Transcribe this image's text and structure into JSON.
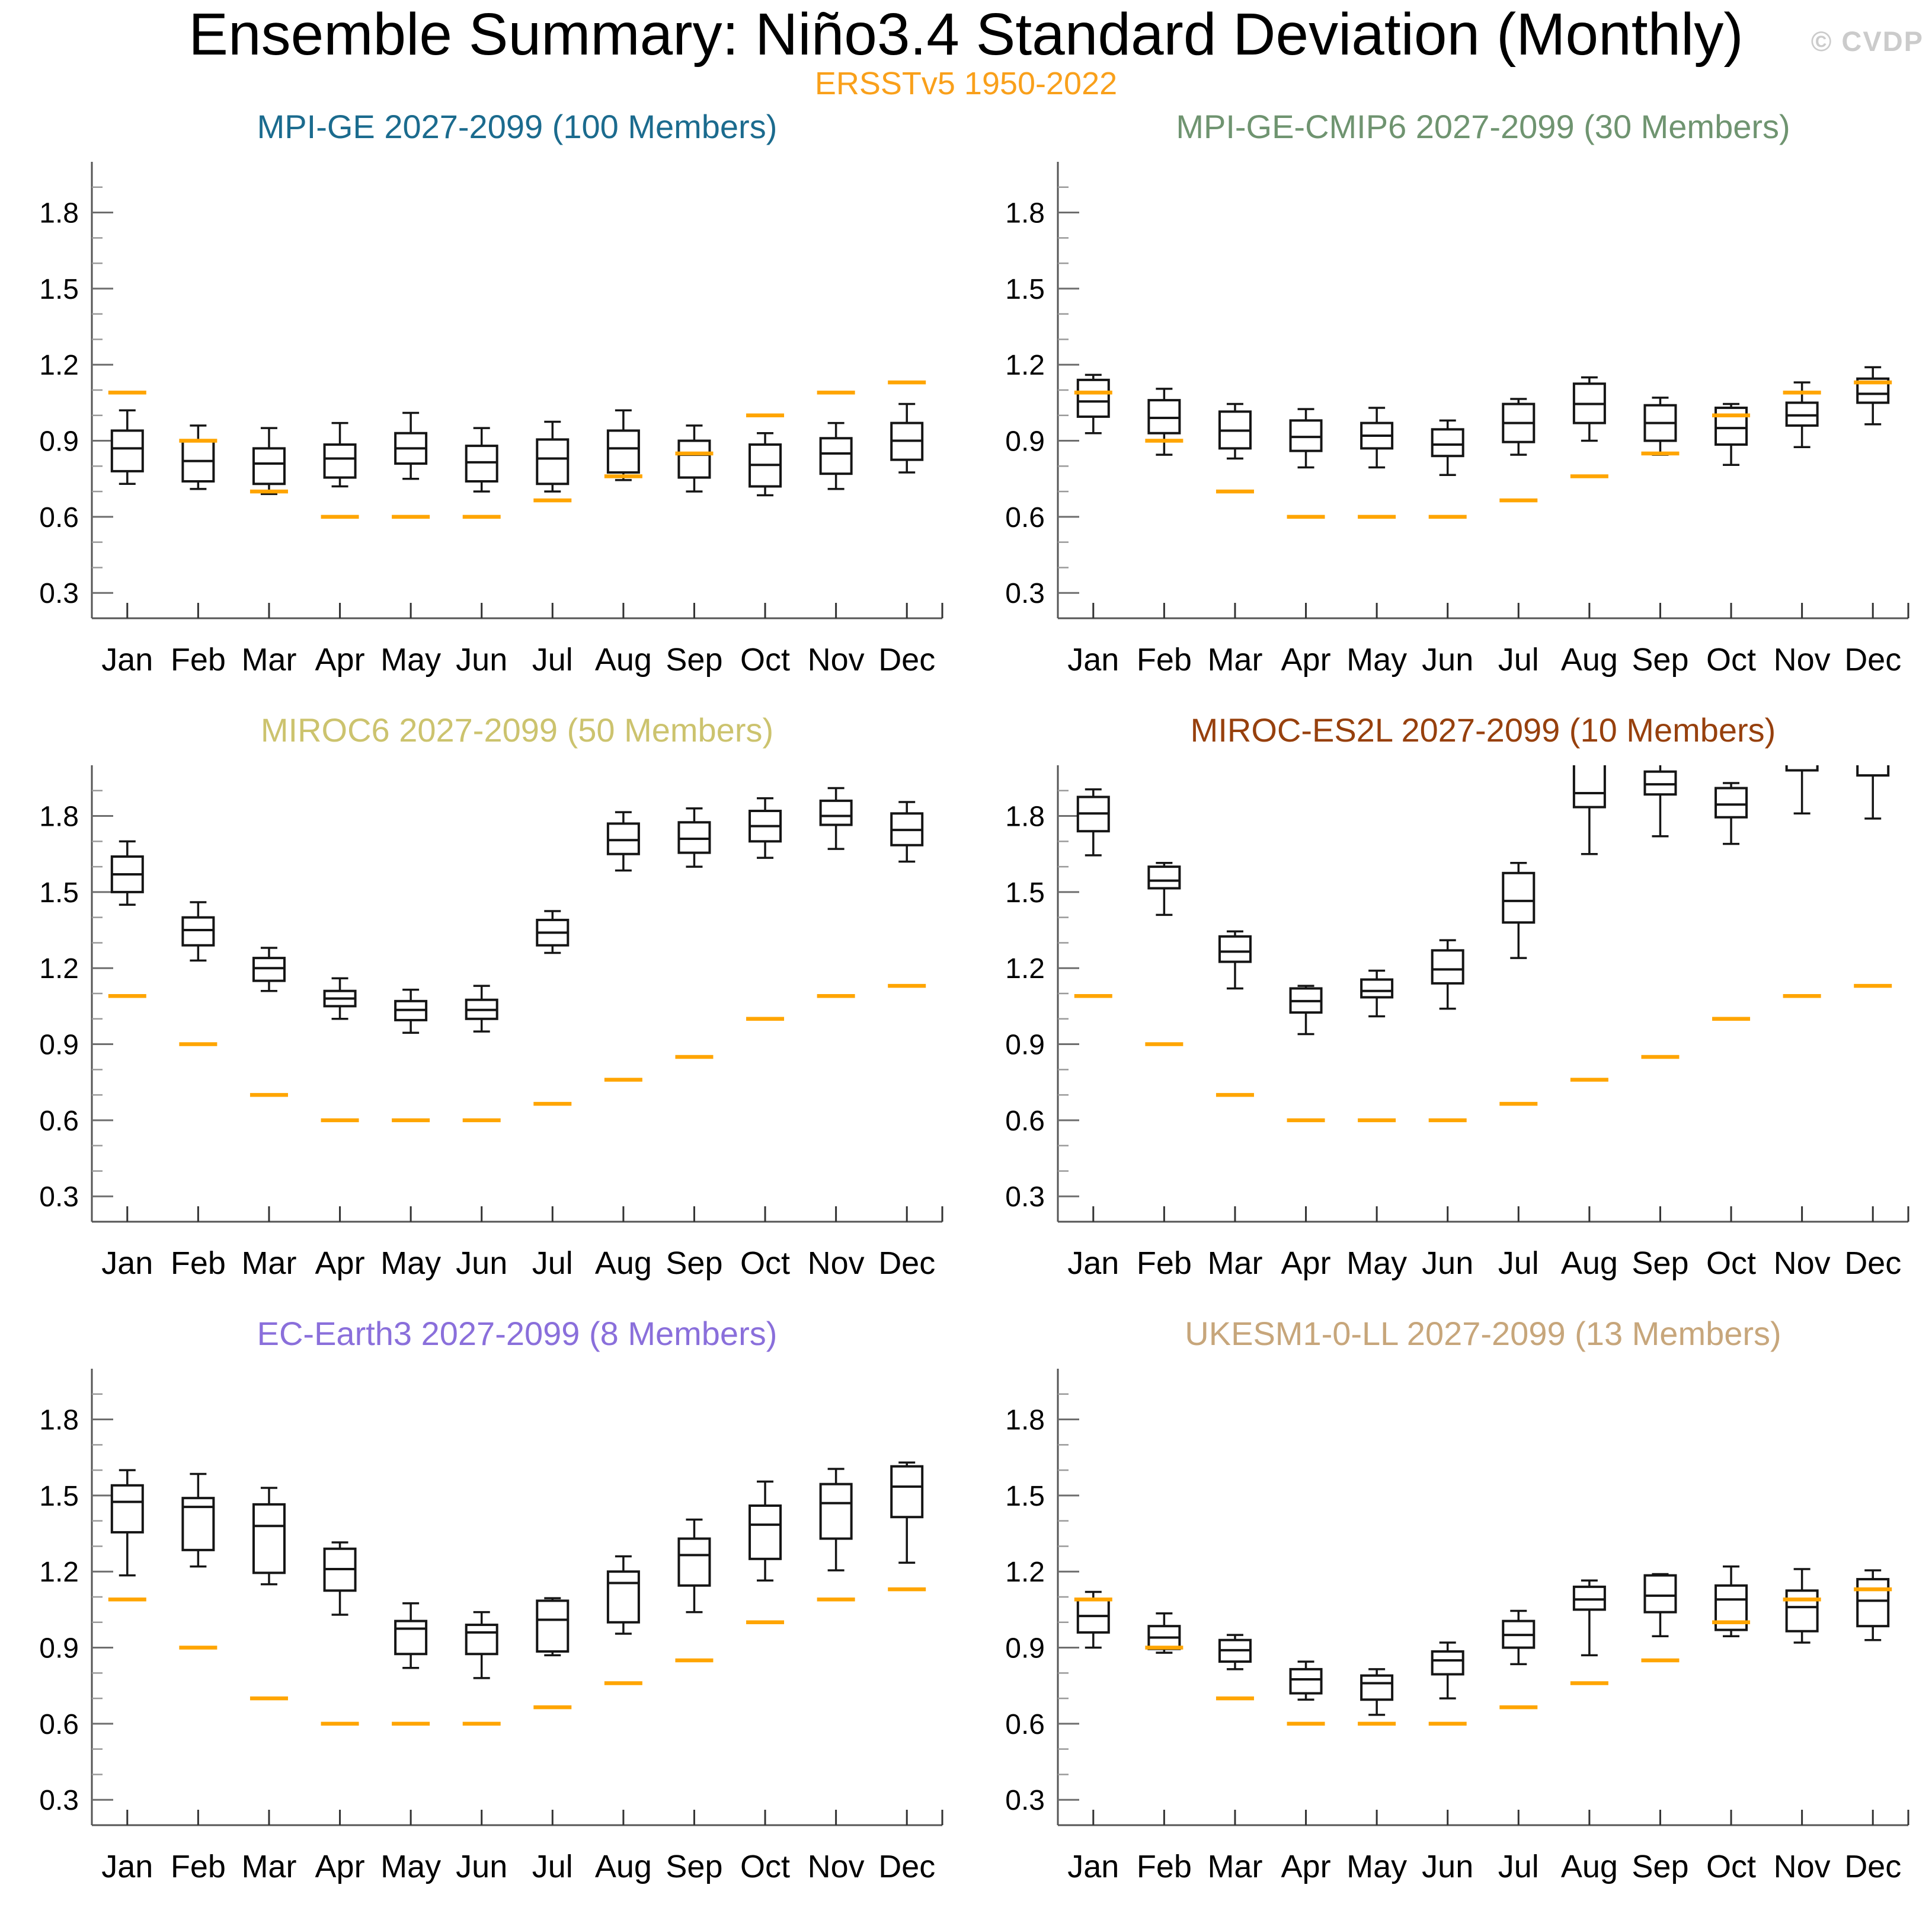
{
  "page": {
    "title": "Ensemble Summary: Niño3.4 Standard Deviation (Monthly)",
    "subtitle": "ERSSTv5 1950-2022",
    "watermark": "© CVDP",
    "colors": {
      "title": "#000000",
      "subtitle": "#F9A01B",
      "obs_line": "#FFA500",
      "box_stroke": "#151515",
      "box_fill": "#FFFFFF",
      "spine": "#555555",
      "tick_major": "#6E6E6E",
      "tick_minor": "#9A9A9A",
      "x_tick": "#333333",
      "label": "#000000",
      "watermark": "#CBCBCB"
    }
  },
  "axes": {
    "ylim": [
      0.2,
      2.0
    ],
    "yticks_major": [
      0.3,
      0.6,
      0.9,
      1.2,
      1.5,
      1.8
    ],
    "yticks_minor": [
      0.4,
      0.5,
      0.7,
      0.8,
      1.0,
      1.1,
      1.3,
      1.4,
      1.6,
      1.7,
      1.9
    ],
    "grid": false,
    "box_value_order": [
      "low",
      "q1",
      "median",
      "q3",
      "high"
    ],
    "obs_note": "orange horizontal line per month = observed ERSSTv5 1950-2022 Niño3.4 standard deviation"
  },
  "observed": [
    1.09,
    0.9,
    0.7,
    0.6,
    0.6,
    0.6,
    0.665,
    0.76,
    0.85,
    1.0,
    1.09,
    1.13
  ],
  "chart_data": [
    {
      "type": "box",
      "title": "MPI-GE 2027-2099 (100 Members)",
      "title_color": "#1B6B8E",
      "categories": [
        "Jan",
        "Feb",
        "Mar",
        "Apr",
        "May",
        "Jun",
        "Jul",
        "Aug",
        "Sep",
        "Oct",
        "Nov",
        "Dec"
      ],
      "boxes": [
        [
          0.73,
          0.78,
          0.87,
          0.94,
          1.02
        ],
        [
          0.71,
          0.74,
          0.82,
          0.9,
          0.96
        ],
        [
          0.69,
          0.73,
          0.81,
          0.87,
          0.95
        ],
        [
          0.72,
          0.755,
          0.83,
          0.885,
          0.97
        ],
        [
          0.75,
          0.81,
          0.87,
          0.93,
          1.01
        ],
        [
          0.7,
          0.74,
          0.815,
          0.88,
          0.95
        ],
        [
          0.7,
          0.73,
          0.83,
          0.905,
          0.975
        ],
        [
          0.745,
          0.775,
          0.87,
          0.94,
          1.02
        ],
        [
          0.7,
          0.755,
          0.845,
          0.9,
          0.96
        ],
        [
          0.685,
          0.72,
          0.805,
          0.885,
          0.93
        ],
        [
          0.71,
          0.77,
          0.85,
          0.91,
          0.97
        ],
        [
          0.775,
          0.825,
          0.9,
          0.97,
          1.045
        ]
      ],
      "obs": [
        1.09,
        0.9,
        0.7,
        0.6,
        0.6,
        0.6,
        0.665,
        0.76,
        0.85,
        1.0,
        1.09,
        1.13
      ]
    },
    {
      "type": "box",
      "title": "MPI-GE-CMIP6 2027-2099 (30 Members)",
      "title_color": "#6F9470",
      "categories": [
        "Jan",
        "Feb",
        "Mar",
        "Apr",
        "May",
        "Jun",
        "Jul",
        "Aug",
        "Sep",
        "Oct",
        "Nov",
        "Dec"
      ],
      "boxes": [
        [
          0.93,
          0.995,
          1.055,
          1.14,
          1.16
        ],
        [
          0.845,
          0.93,
          0.99,
          1.06,
          1.105
        ],
        [
          0.83,
          0.87,
          0.94,
          1.015,
          1.045
        ],
        [
          0.795,
          0.86,
          0.915,
          0.98,
          1.025
        ],
        [
          0.795,
          0.87,
          0.92,
          0.97,
          1.03
        ],
        [
          0.765,
          0.84,
          0.885,
          0.945,
          0.98
        ],
        [
          0.845,
          0.895,
          0.97,
          1.045,
          1.065
        ],
        [
          0.9,
          0.97,
          1.045,
          1.125,
          1.15
        ],
        [
          0.845,
          0.9,
          0.97,
          1.04,
          1.07
        ],
        [
          0.805,
          0.885,
          0.95,
          1.03,
          1.045
        ],
        [
          0.875,
          0.96,
          1.0,
          1.05,
          1.13
        ],
        [
          0.965,
          1.05,
          1.085,
          1.145,
          1.19
        ]
      ],
      "obs": [
        1.09,
        0.9,
        0.7,
        0.6,
        0.6,
        0.6,
        0.665,
        0.76,
        0.85,
        1.0,
        1.09,
        1.13
      ]
    },
    {
      "type": "box",
      "title": "MIROC6 2027-2099 (50 Members)",
      "title_color": "#CCC36E",
      "categories": [
        "Jan",
        "Feb",
        "Mar",
        "Apr",
        "May",
        "Jun",
        "Jul",
        "Aug",
        "Sep",
        "Oct",
        "Nov",
        "Dec"
      ],
      "boxes": [
        [
          1.45,
          1.5,
          1.57,
          1.64,
          1.7
        ],
        [
          1.23,
          1.29,
          1.35,
          1.4,
          1.46
        ],
        [
          1.11,
          1.15,
          1.2,
          1.24,
          1.28
        ],
        [
          1.0,
          1.05,
          1.08,
          1.11,
          1.16
        ],
        [
          0.945,
          0.995,
          1.035,
          1.07,
          1.115
        ],
        [
          0.95,
          1.0,
          1.035,
          1.075,
          1.13
        ],
        [
          1.26,
          1.29,
          1.34,
          1.39,
          1.425
        ],
        [
          1.585,
          1.65,
          1.705,
          1.77,
          1.815
        ],
        [
          1.6,
          1.655,
          1.71,
          1.775,
          1.83
        ],
        [
          1.635,
          1.7,
          1.76,
          1.82,
          1.87
        ],
        [
          1.67,
          1.765,
          1.8,
          1.86,
          1.91
        ],
        [
          1.62,
          1.685,
          1.745,
          1.81,
          1.855
        ]
      ],
      "obs": [
        1.09,
        0.9,
        0.7,
        0.6,
        0.6,
        0.6,
        0.665,
        0.76,
        0.85,
        1.0,
        1.09,
        1.13
      ]
    },
    {
      "type": "box",
      "title": "MIROC-ES2L 2027-2099 (10 Members)",
      "title_color": "#97400D",
      "categories": [
        "Jan",
        "Feb",
        "Mar",
        "Apr",
        "May",
        "Jun",
        "Jul",
        "Aug",
        "Sep",
        "Oct",
        "Nov",
        "Dec"
      ],
      "boxes": [
        [
          1.645,
          1.74,
          1.81,
          1.875,
          1.905
        ],
        [
          1.41,
          1.515,
          1.545,
          1.6,
          1.615
        ],
        [
          1.12,
          1.225,
          1.265,
          1.325,
          1.345
        ],
        [
          0.94,
          1.025,
          1.07,
          1.12,
          1.13
        ],
        [
          1.01,
          1.085,
          1.11,
          1.155,
          1.19
        ],
        [
          1.04,
          1.14,
          1.195,
          1.27,
          1.31
        ],
        [
          1.24,
          1.38,
          1.465,
          1.575,
          1.615
        ],
        [
          1.65,
          1.835,
          1.89,
          2.02,
          2.08
        ],
        [
          1.72,
          1.885,
          1.925,
          1.975,
          2.05
        ],
        [
          1.69,
          1.795,
          1.845,
          1.91,
          1.93
        ],
        [
          1.81,
          1.98,
          2.04,
          2.09,
          2.14
        ],
        [
          1.79,
          1.96,
          2.02,
          2.07,
          2.12
        ]
      ],
      "obs": [
        1.09,
        0.9,
        0.7,
        0.6,
        0.6,
        0.6,
        0.665,
        0.76,
        0.85,
        1.0,
        1.09,
        1.13
      ]
    },
    {
      "type": "box",
      "title": "EC-Earth3 2027-2099 (8 Members)",
      "title_color": "#8A6FDB",
      "categories": [
        "Jan",
        "Feb",
        "Mar",
        "Apr",
        "May",
        "Jun",
        "Jul",
        "Aug",
        "Sep",
        "Oct",
        "Nov",
        "Dec"
      ],
      "boxes": [
        [
          1.185,
          1.355,
          1.475,
          1.54,
          1.6
        ],
        [
          1.22,
          1.285,
          1.455,
          1.49,
          1.585
        ],
        [
          1.15,
          1.195,
          1.38,
          1.465,
          1.53
        ],
        [
          1.03,
          1.125,
          1.21,
          1.29,
          1.315
        ],
        [
          0.82,
          0.875,
          0.975,
          1.005,
          1.075
        ],
        [
          0.78,
          0.875,
          0.96,
          0.99,
          1.04
        ],
        [
          0.87,
          0.885,
          1.01,
          1.085,
          1.095
        ],
        [
          0.955,
          1.0,
          1.155,
          1.2,
          1.26
        ],
        [
          1.04,
          1.145,
          1.265,
          1.33,
          1.405
        ],
        [
          1.165,
          1.25,
          1.385,
          1.46,
          1.555
        ],
        [
          1.205,
          1.33,
          1.47,
          1.545,
          1.605
        ],
        [
          1.235,
          1.415,
          1.535,
          1.615,
          1.63
        ]
      ],
      "obs": [
        1.09,
        0.9,
        0.7,
        0.6,
        0.6,
        0.6,
        0.665,
        0.76,
        0.85,
        1.0,
        1.09,
        1.13
      ]
    },
    {
      "type": "box",
      "title": "UKESM1-0-LL 2027-2099 (13 Members)",
      "title_color": "#C7A67B",
      "categories": [
        "Jan",
        "Feb",
        "Mar",
        "Apr",
        "May",
        "Jun",
        "Jul",
        "Aug",
        "Sep",
        "Oct",
        "Nov",
        "Dec"
      ],
      "boxes": [
        [
          0.9,
          0.96,
          1.025,
          1.09,
          1.12
        ],
        [
          0.88,
          0.895,
          0.94,
          0.985,
          1.035
        ],
        [
          0.815,
          0.845,
          0.89,
          0.93,
          0.95
        ],
        [
          0.695,
          0.72,
          0.775,
          0.815,
          0.845
        ],
        [
          0.635,
          0.695,
          0.76,
          0.79,
          0.815
        ],
        [
          0.7,
          0.795,
          0.85,
          0.885,
          0.92
        ],
        [
          0.835,
          0.9,
          0.95,
          1.005,
          1.045
        ],
        [
          0.87,
          1.05,
          1.09,
          1.14,
          1.165
        ],
        [
          0.945,
          1.04,
          1.105,
          1.185,
          1.19
        ],
        [
          0.945,
          0.97,
          1.09,
          1.145,
          1.22
        ],
        [
          0.92,
          0.965,
          1.06,
          1.125,
          1.21
        ],
        [
          0.93,
          0.985,
          1.085,
          1.17,
          1.205
        ]
      ],
      "obs": [
        1.09,
        0.9,
        0.7,
        0.6,
        0.6,
        0.6,
        0.665,
        0.76,
        0.85,
        1.0,
        1.09,
        1.13
      ]
    }
  ]
}
